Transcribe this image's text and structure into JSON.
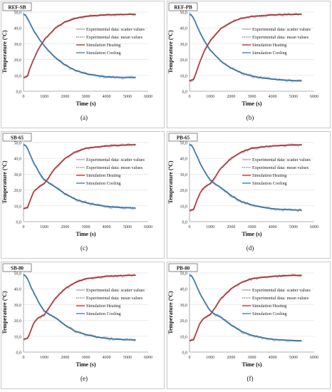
{
  "figure": {
    "panels_label": "Six-panel temperature vs time figure"
  },
  "series_styles": {
    "scatter": {
      "color": "#c8c8c8"
    },
    "mean": {
      "color": "#222222"
    },
    "heating": {
      "color": "#c0272d"
    },
    "cooling": {
      "color": "#2a7ab9"
    }
  },
  "legend_entries": [
    {
      "key": "scatter",
      "label": "Experimental data: scatter values"
    },
    {
      "key": "mean",
      "label": "Experimental data: mean values"
    },
    {
      "key": "heating",
      "label": "Simulation Heating"
    },
    {
      "key": "cooling",
      "label": "Simulation Cooling"
    }
  ],
  "chart_data": [
    {
      "type": "line",
      "panel_letter": "(a)",
      "tag": "REF-SB",
      "xlabel": "Time (s)",
      "ylabel": "Temperature (ºC)",
      "xlim": [
        0,
        6000
      ],
      "ylim": [
        0,
        50
      ],
      "x_ticks": [
        "0",
        "1000",
        "2000",
        "3000",
        "4000",
        "5000",
        "6000"
      ],
      "y_ticks": [
        "0,0",
        "10,0",
        "20,0",
        "30,0",
        "40,0",
        "50,0"
      ],
      "series": [
        {
          "name": "Simulation Heating",
          "key": "heating",
          "x": [
            0,
            200,
            300,
            500,
            700,
            1000,
            1500,
            2000,
            2500,
            3000,
            4000,
            5000,
            5400
          ],
          "y": [
            8.5,
            9.5,
            14,
            20.5,
            26,
            32.5,
            39.5,
            43.8,
            46,
            47.3,
            48.2,
            48.5,
            48.6
          ]
        },
        {
          "name": "Simulation Cooling",
          "key": "cooling",
          "x": [
            0,
            100,
            200,
            500,
            800,
            1000,
            1500,
            2000,
            2500,
            3000,
            3500,
            4000,
            4500,
            5000,
            5400
          ],
          "y": [
            48.5,
            48,
            46,
            38,
            32,
            28.5,
            21.5,
            16.5,
            13,
            11,
            9.8,
            9,
            8.7,
            8.6,
            8.5
          ]
        }
      ]
    },
    {
      "type": "line",
      "panel_letter": "(b)",
      "tag": "REF-PB",
      "xlabel": "Time (s)",
      "ylabel": "Temperature (ºC)",
      "xlim": [
        0,
        6000
      ],
      "ylim": [
        0,
        50
      ],
      "x_ticks": [
        "0",
        "1000",
        "2000",
        "3000",
        "4000",
        "5000",
        "6000"
      ],
      "y_ticks": [
        "0,0",
        "10,0",
        "20,0",
        "30,0",
        "40,0",
        "50,0"
      ],
      "series": [
        {
          "name": "Simulation Heating",
          "key": "heating",
          "x": [
            0,
            200,
            300,
            500,
            700,
            1000,
            1500,
            2000,
            2500,
            3000,
            4000,
            5000,
            5400
          ],
          "y": [
            6.5,
            7.5,
            11,
            18.5,
            25,
            32,
            39.5,
            43.5,
            46,
            47.2,
            48.2,
            48.5,
            48.6
          ]
        },
        {
          "name": "Simulation Cooling",
          "key": "cooling",
          "x": [
            0,
            100,
            200,
            500,
            800,
            1000,
            1500,
            2000,
            2500,
            3000,
            3500,
            4000,
            4500,
            5000,
            5400
          ],
          "y": [
            48.5,
            48,
            46,
            37,
            30,
            26,
            19,
            14.5,
            11.5,
            9.5,
            8.3,
            7.5,
            7,
            6.6,
            6.4
          ]
        }
      ]
    },
    {
      "type": "line",
      "panel_letter": "(c)",
      "tag": "SB-65",
      "xlabel": "Time (s)",
      "ylabel": "Temperature (ºC)",
      "xlim": [
        0,
        6000
      ],
      "ylim": [
        0,
        50
      ],
      "x_ticks": [
        "0",
        "1000",
        "2000",
        "3000",
        "4000",
        "5000",
        "6000"
      ],
      "y_ticks": [
        "0,0",
        "10,0",
        "20,0",
        "30,0",
        "40,0",
        "50,0"
      ],
      "series": [
        {
          "name": "Simulation Heating",
          "key": "heating",
          "x": [
            0,
            200,
            300,
            500,
            700,
            1000,
            1200,
            1500,
            2000,
            2500,
            3000,
            4000,
            5000,
            5400
          ],
          "y": [
            8,
            9,
            13,
            19,
            21.5,
            24,
            27.5,
            33.5,
            40,
            44,
            46.3,
            47.8,
            48.4,
            48.5
          ]
        },
        {
          "name": "Simulation Cooling",
          "key": "cooling",
          "x": [
            0,
            100,
            200,
            500,
            800,
            1000,
            1200,
            1500,
            2000,
            2500,
            3000,
            3500,
            4000,
            4500,
            5000,
            5400
          ],
          "y": [
            48.5,
            48,
            46,
            37,
            30,
            26.5,
            24.5,
            22,
            17.5,
            14,
            12,
            10.5,
            9.5,
            9,
            8.7,
            8.6
          ]
        }
      ]
    },
    {
      "type": "line",
      "panel_letter": "(d)",
      "tag": "PB-65",
      "xlabel": "Time (s)",
      "ylabel": "Temperature (ºC)",
      "xlim": [
        0,
        6000
      ],
      "ylim": [
        0,
        50
      ],
      "x_ticks": [
        "0",
        "1000",
        "2000",
        "3000",
        "4000",
        "5000",
        "6000"
      ],
      "y_ticks": [
        "0,0",
        "10,0",
        "20,0",
        "30,0",
        "40,0",
        "50,0"
      ],
      "series": [
        {
          "name": "Simulation Heating",
          "key": "heating",
          "x": [
            0,
            200,
            300,
            500,
            700,
            1000,
            1200,
            1500,
            2000,
            2500,
            3000,
            4000,
            5000,
            5400
          ],
          "y": [
            7,
            7.8,
            11.5,
            18,
            21.5,
            24,
            27.5,
            33.5,
            40,
            44,
            46.3,
            47.8,
            48.4,
            48.5
          ]
        },
        {
          "name": "Simulation Cooling",
          "key": "cooling",
          "x": [
            0,
            100,
            200,
            500,
            800,
            1000,
            1200,
            1500,
            2000,
            2500,
            3000,
            3500,
            4000,
            4500,
            5000,
            5400
          ],
          "y": [
            48.5,
            48,
            46,
            37,
            30,
            26,
            24,
            21.5,
            16.5,
            12.5,
            10.5,
            9,
            8,
            7.6,
            7.3,
            7.2
          ]
        }
      ]
    },
    {
      "type": "line",
      "panel_letter": "(e)",
      "tag": "SB-80",
      "xlabel": "Time (s)",
      "ylabel": "Temperature (ºC)",
      "xlim": [
        0,
        6000
      ],
      "ylim": [
        0,
        50
      ],
      "x_ticks": [
        "0",
        "1000",
        "2000",
        "3000",
        "4000",
        "5000",
        "6000"
      ],
      "y_ticks": [
        "0,0",
        "10,0",
        "20,0",
        "30,0",
        "40,0",
        "50,0"
      ],
      "series": [
        {
          "name": "Simulation Heating",
          "key": "heating",
          "x": [
            0,
            200,
            300,
            500,
            700,
            1000,
            1200,
            1500,
            2000,
            2500,
            3000,
            4000,
            5000,
            5400
          ],
          "y": [
            8,
            8.8,
            12,
            18.5,
            21.5,
            23.5,
            27.5,
            33.5,
            40,
            44,
            46.3,
            47.8,
            48.4,
            48.5
          ]
        },
        {
          "name": "Simulation Cooling",
          "key": "cooling",
          "x": [
            0,
            100,
            200,
            500,
            800,
            1000,
            1200,
            1500,
            2000,
            2500,
            3000,
            3500,
            4000,
            4500,
            5000,
            5400
          ],
          "y": [
            48.5,
            48,
            46,
            37,
            30,
            26,
            24,
            22,
            17,
            13,
            11,
            9.5,
            8.5,
            8,
            7.7,
            7.6
          ]
        }
      ]
    },
    {
      "type": "line",
      "panel_letter": "(f)",
      "tag": "PB-80",
      "xlabel": "Time (s)",
      "ylabel": "Temperature (ºC)",
      "xlim": [
        0,
        6000
      ],
      "ylim": [
        0,
        50
      ],
      "x_ticks": [
        "0",
        "1000",
        "2000",
        "3000",
        "4000",
        "5000",
        "6000"
      ],
      "y_ticks": [
        "0,0",
        "10,0",
        "20,0",
        "30,0",
        "40,0",
        "50,0"
      ],
      "series": [
        {
          "name": "Simulation Heating",
          "key": "heating",
          "x": [
            0,
            200,
            300,
            500,
            700,
            1000,
            1200,
            1500,
            2000,
            2500,
            3000,
            4000,
            5000,
            5400
          ],
          "y": [
            7,
            7.8,
            11.5,
            18,
            21.5,
            23.5,
            27.5,
            33.5,
            40,
            44,
            46.3,
            47.8,
            48.4,
            48.5
          ]
        },
        {
          "name": "Simulation Cooling",
          "key": "cooling",
          "x": [
            0,
            100,
            200,
            500,
            800,
            1000,
            1200,
            1500,
            2000,
            2500,
            3000,
            3500,
            4000,
            4500,
            5000,
            5400
          ],
          "y": [
            48.5,
            48,
            46,
            37,
            30,
            26,
            24,
            22,
            17,
            13,
            10.5,
            9,
            8,
            7.5,
            7.2,
            7.1
          ]
        }
      ]
    }
  ]
}
